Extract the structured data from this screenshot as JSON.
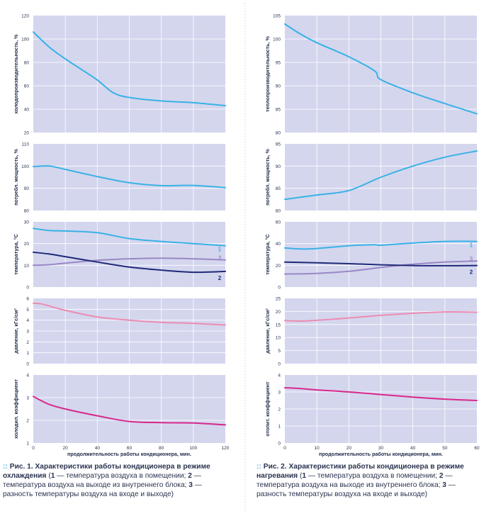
{
  "colors": {
    "plot_bg": "#d4d6ee",
    "grid": "#ffffff",
    "blue": "#38b2e6",
    "navy": "#1f2a78",
    "lavender": "#9a88c6",
    "pink": "#ec8cb2",
    "magenta": "#d8288c",
    "divider": "#b9bdd6"
  },
  "charts": [
    {
      "id": "cooling",
      "xlabel": "продолжительность работы кондиционера, мин.",
      "xticks": [
        "0",
        "20",
        "40",
        "60",
        "80",
        "100",
        "120"
      ],
      "caption": {
        "bullet": "::",
        "title": "Рис. 1. Характеристики работы кондиционера в режиме охлаждения",
        "n1": "1",
        "t1": " — температура воздуха в помещении; ",
        "n2": "2",
        "t2": " — температура воздуха на выходе из внутреннего блока; ",
        "n3": "3",
        "t3": " — разность температуры воздуха на входе и выходе)"
      }
    },
    {
      "id": "heating",
      "xlabel": "продолжительность работы кондиционера, мин.",
      "xticks": [
        "0",
        "10",
        "20",
        "30",
        "40",
        "50",
        "60"
      ],
      "caption": {
        "bullet": "::",
        "title": "Рис. 2. Характеристики работы кондиционера в режиме нагревания",
        "n1": "1",
        "t1": " — температура воздуха в помещении; ",
        "n2": "2",
        "t2": " — температура воздуха на выходе из внутреннего блока; ",
        "n3": "3",
        "t3": " — разность температуры воздуха на входе и выходе)"
      }
    }
  ],
  "chart_data": [
    {
      "type": "line",
      "title": "",
      "xlabel": "продолжительность работы кондиционера, мин.",
      "ylabel": "холодопроизводительность, %",
      "xlim": [
        0,
        120
      ],
      "ylim": [
        20,
        120
      ],
      "yticks": [
        "20",
        "40",
        "60",
        "80",
        "100",
        "120"
      ],
      "series": [
        {
          "name": "холодопроизводительность",
          "color": "#38b2e6",
          "x": [
            0,
            10,
            20,
            30,
            40,
            50,
            60,
            80,
            100,
            120
          ],
          "y": [
            106,
            93,
            83,
            74,
            65,
            54,
            50,
            47,
            45.5,
            43
          ]
        }
      ]
    },
    {
      "type": "line",
      "title": "",
      "xlabel": "продолжительность работы кондиционера, мин.",
      "ylabel": "потребл. мощность, %",
      "xlim": [
        0,
        120
      ],
      "ylim": [
        80,
        110
      ],
      "yticks": [
        "80",
        "90",
        "100",
        "110"
      ],
      "series": [
        {
          "name": "потребл. мощность",
          "color": "#38b2e6",
          "x": [
            0,
            10,
            20,
            40,
            60,
            80,
            100,
            120
          ],
          "y": [
            99.8,
            100,
            98.5,
            95.3,
            92.5,
            91.2,
            91.3,
            90.3
          ]
        }
      ]
    },
    {
      "type": "line",
      "title": "",
      "xlabel": "продолжительность работы кондиционера, мин.",
      "ylabel": "температура, °С",
      "xlim": [
        0,
        120
      ],
      "ylim": [
        0,
        30
      ],
      "yticks": [
        "0",
        "10",
        "20",
        "30"
      ],
      "series": [
        {
          "name": "1",
          "label": "1",
          "color": "#38b2e6",
          "x": [
            0,
            10,
            20,
            40,
            60,
            80,
            100,
            120
          ],
          "y": [
            27,
            26,
            25.8,
            25,
            22.3,
            21,
            20,
            19
          ]
        },
        {
          "name": "3",
          "label": "3",
          "color": "#9a88c6",
          "x": [
            0,
            10,
            20,
            40,
            60,
            80,
            100,
            120
          ],
          "y": [
            10,
            10.3,
            11,
            12.3,
            13,
            13.3,
            13,
            12.5
          ]
        },
        {
          "name": "2",
          "label": "2",
          "color": "#1f2a78",
          "x": [
            0,
            10,
            20,
            40,
            60,
            80,
            100,
            120
          ],
          "y": [
            16,
            15.2,
            14,
            11.5,
            9.2,
            7.8,
            6.8,
            7.2
          ]
        }
      ]
    },
    {
      "type": "line",
      "title": "",
      "xlabel": "продолжительность работы кондиционера, мин.",
      "ylabel": "давление, кГс/см²",
      "xlim": [
        0,
        120
      ],
      "ylim": [
        0,
        6
      ],
      "yticks": [
        "0",
        "1",
        "2",
        "3",
        "4",
        "5",
        "6"
      ],
      "series": [
        {
          "name": "давление",
          "color": "#ec8cb2",
          "x": [
            0,
            5,
            10,
            20,
            40,
            60,
            80,
            100,
            120
          ],
          "y": [
            5.55,
            5.5,
            5.3,
            4.9,
            4.3,
            4.0,
            3.8,
            3.7,
            3.55
          ]
        }
      ]
    },
    {
      "type": "line",
      "title": "",
      "xlabel": "продолжительность работы кондиционера, мин.",
      "ylabel": "холодил. коэффициент",
      "xlim": [
        0,
        120
      ],
      "ylim": [
        1,
        4
      ],
      "yticks": [
        "1",
        "2",
        "3",
        "4"
      ],
      "series": [
        {
          "name": "холодил. коэффициент",
          "color": "#d8288c",
          "x": [
            0,
            10,
            20,
            40,
            60,
            80,
            100,
            120
          ],
          "y": [
            3.05,
            2.7,
            2.5,
            2.2,
            1.95,
            1.9,
            1.88,
            1.8
          ]
        }
      ]
    },
    {
      "type": "line",
      "title": "",
      "xlabel": "продолжительность работы кондиционера, мин.",
      "ylabel": "теплопроизводительность, %",
      "xlim": [
        0,
        60
      ],
      "ylim": [
        80,
        105
      ],
      "yticks": [
        "80",
        "85",
        "90",
        "95",
        "100",
        "105"
      ],
      "series": [
        {
          "name": "теплопроизводительность",
          "color": "#38b2e6",
          "x": [
            0,
            5,
            10,
            20,
            28,
            30,
            40,
            50,
            60
          ],
          "y": [
            103.2,
            101,
            99.2,
            96.2,
            93.2,
            91.3,
            88.5,
            86.2,
            84
          ]
        }
      ]
    },
    {
      "type": "line",
      "title": "",
      "xlabel": "продолжительность работы кондиционера, мин.",
      "ylabel": "потребл. мощность, %",
      "xlim": [
        0,
        60
      ],
      "ylim": [
        80,
        95
      ],
      "yticks": [
        "80",
        "85",
        "90",
        "95"
      ],
      "series": [
        {
          "name": "потребл. мощность",
          "color": "#38b2e6",
          "x": [
            0,
            10,
            20,
            30,
            40,
            50,
            60
          ],
          "y": [
            82.5,
            83.5,
            84.5,
            87.5,
            90,
            92,
            93.4
          ]
        }
      ]
    },
    {
      "type": "line",
      "title": "",
      "xlabel": "продолжительность работы кондиционера, мин.",
      "ylabel": "температура, °С",
      "xlim": [
        0,
        60
      ],
      "ylim": [
        0,
        60
      ],
      "yticks": [
        "0",
        "20",
        "40",
        "60"
      ],
      "series": [
        {
          "name": "1",
          "label": "1",
          "color": "#38b2e6",
          "x": [
            0,
            5,
            10,
            20,
            28,
            30,
            40,
            50,
            60
          ],
          "y": [
            36,
            35,
            35.5,
            38,
            39,
            38.5,
            40.5,
            42,
            42
          ]
        },
        {
          "name": "3",
          "label": "3",
          "color": "#9a88c6",
          "x": [
            0,
            10,
            20,
            30,
            40,
            50,
            60
          ],
          "y": [
            12,
            12.5,
            14.5,
            18,
            21,
            23,
            24
          ]
        },
        {
          "name": "2",
          "label": "2",
          "color": "#1f2a78",
          "x": [
            0,
            10,
            20,
            30,
            40,
            50,
            60
          ],
          "y": [
            23,
            22.3,
            21.5,
            20.5,
            19.8,
            19.6,
            19.8
          ]
        }
      ]
    },
    {
      "type": "line",
      "title": "",
      "xlabel": "продолжительность работы кондиционера, мин.",
      "ylabel": "давление, кГс/см²",
      "xlim": [
        0,
        60
      ],
      "ylim": [
        0,
        25
      ],
      "yticks": [
        "0",
        "5",
        "10",
        "15",
        "20",
        "25"
      ],
      "series": [
        {
          "name": "давление",
          "color": "#ec8cb2",
          "x": [
            0,
            5,
            10,
            20,
            30,
            40,
            50,
            60
          ],
          "y": [
            16.5,
            16.3,
            16.6,
            17.5,
            18.5,
            19.3,
            19.8,
            19.7
          ]
        }
      ]
    },
    {
      "type": "line",
      "title": "",
      "xlabel": "продолжительность работы кондиционера, мин.",
      "ylabel": "отопит. коэффициент",
      "xlim": [
        0,
        60
      ],
      "ylim": [
        0,
        4
      ],
      "yticks": [
        "0",
        "1",
        "2",
        "3",
        "4"
      ],
      "series": [
        {
          "name": "отопит. коэффициент",
          "color": "#d8288c",
          "x": [
            0,
            5,
            10,
            20,
            30,
            40,
            50,
            60
          ],
          "y": [
            3.25,
            3.2,
            3.12,
            3.0,
            2.85,
            2.7,
            2.58,
            2.5
          ]
        }
      ]
    }
  ]
}
